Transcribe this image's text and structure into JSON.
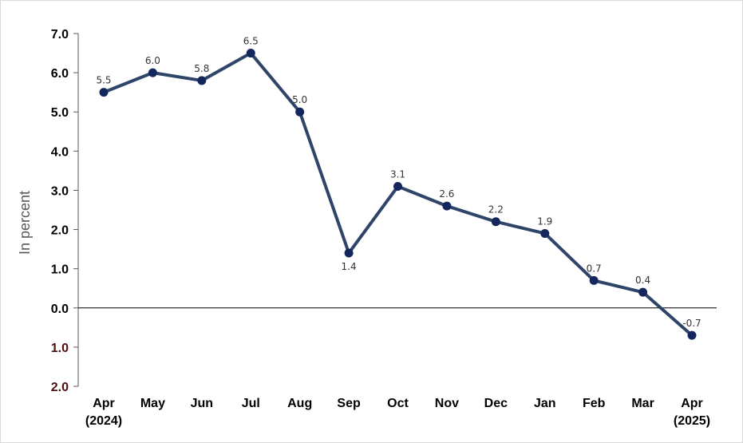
{
  "chart_data": {
    "type": "line",
    "categories": [
      "Apr\n(2024)",
      "May",
      "Jun",
      "Jul",
      "Aug",
      "Sep",
      "Oct",
      "Nov",
      "Dec",
      "Jan",
      "Feb",
      "Mar",
      "Apr\n(2025)"
    ],
    "values": [
      5.5,
      6.0,
      5.8,
      6.5,
      5.0,
      1.4,
      3.1,
      2.6,
      2.2,
      1.9,
      0.7,
      0.4,
      -0.7
    ],
    "data_labels": [
      "5.5",
      "6.0",
      "5.8",
      "6.5",
      "5.0",
      "1.4",
      "3.1",
      "2.6",
      "2.2",
      "1.9",
      "0.7",
      "0.4",
      "-0.7"
    ],
    "ytick_labels": [
      "7.0",
      "6.0",
      "5.0",
      "4.0",
      "3.0",
      "2.0",
      "1.0",
      "0.0",
      "1.0",
      "2.0"
    ],
    "ytick_values": [
      7,
      6,
      5,
      4,
      3,
      2,
      1,
      0,
      -1,
      -2
    ],
    "ylabel": "In percent",
    "xlabel": "",
    "title": "",
    "ylim": [
      -2,
      7
    ],
    "grid": false,
    "legend": "none",
    "line_color": "#2e4468",
    "marker_color": "#13265e"
  }
}
